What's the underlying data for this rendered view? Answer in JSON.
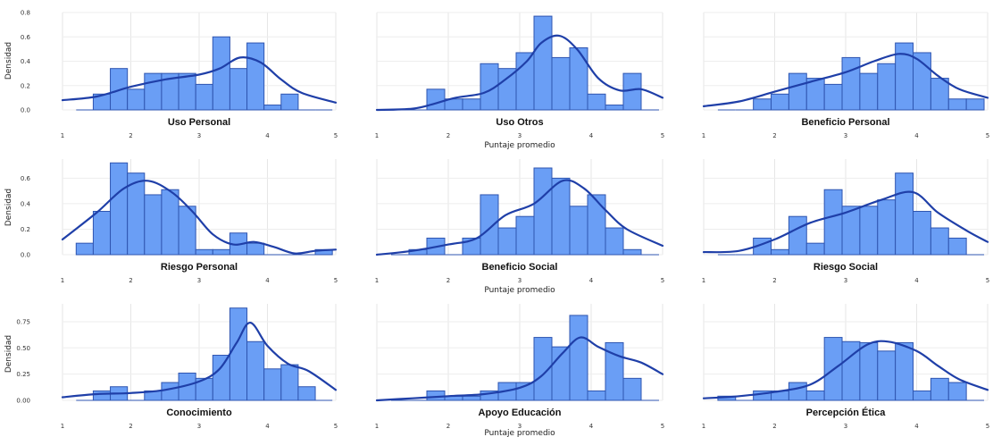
{
  "chart_data": {
    "type": "histogram",
    "xlabel": "Puntaje promedio",
    "ylabel": "Densidad",
    "bin_edges": [
      1.2,
      1.45,
      1.7,
      1.95,
      2.2,
      2.45,
      2.7,
      2.95,
      3.2,
      3.45,
      3.7,
      3.95,
      4.2,
      4.45,
      4.7,
      4.95
    ],
    "x_ticks": [
      "1",
      "2",
      "3",
      "4",
      "5"
    ],
    "x_range": [
      1,
      5
    ],
    "bar_color": "#6a9ef5",
    "bar_edge_color": "#2f55b0",
    "density_color": "#1f3fa8",
    "grid": true,
    "rows": [
      {
        "y_range": [
          0,
          0.8
        ],
        "y_ticks": [
          "0.0",
          "0.2",
          "0.4",
          "0.6",
          "0.8"
        ],
        "y_tick_values": [
          0,
          0.2,
          0.4,
          0.6,
          0.8
        ]
      },
      {
        "y_range": [
          0,
          0.75
        ],
        "y_ticks": [
          "0.0",
          "0.2",
          "0.4",
          "0.6"
        ],
        "y_tick_values": [
          0,
          0.2,
          0.4,
          0.6
        ]
      },
      {
        "y_range": [
          0,
          0.92
        ],
        "y_ticks": [
          "0.00",
          "0.25",
          "0.50",
          "0.75"
        ],
        "y_tick_values": [
          0,
          0.25,
          0.5,
          0.75
        ]
      }
    ],
    "panels": [
      {
        "title": "Uso Personal",
        "values": [
          0,
          0.13,
          0.34,
          0.17,
          0.3,
          0.3,
          0.3,
          0.21,
          0.6,
          0.34,
          0.55,
          0.04,
          0.13,
          0,
          0
        ],
        "density_x": [
          1.0,
          1.5,
          2.0,
          2.5,
          3.0,
          3.3,
          3.6,
          3.9,
          4.2,
          4.5,
          5.0
        ],
        "density_y": [
          0.08,
          0.11,
          0.19,
          0.25,
          0.29,
          0.34,
          0.43,
          0.39,
          0.25,
          0.14,
          0.06
        ]
      },
      {
        "title": "Uso Otros",
        "values": [
          0,
          0,
          0.17,
          0.09,
          0.09,
          0.38,
          0.34,
          0.47,
          0.77,
          0.43,
          0.51,
          0.13,
          0.04,
          0.3,
          0
        ],
        "density_x": [
          1.0,
          1.5,
          1.8,
          2.1,
          2.5,
          2.8,
          3.1,
          3.3,
          3.55,
          3.8,
          4.1,
          4.4,
          4.7,
          5.0
        ],
        "density_y": [
          0.0,
          0.01,
          0.05,
          0.1,
          0.14,
          0.25,
          0.4,
          0.55,
          0.61,
          0.5,
          0.26,
          0.16,
          0.17,
          0.1
        ]
      },
      {
        "title": "Beneficio Personal",
        "values": [
          0,
          0,
          0.09,
          0.13,
          0.3,
          0.26,
          0.21,
          0.43,
          0.3,
          0.38,
          0.55,
          0.47,
          0.26,
          0.09,
          0.09
        ],
        "density_x": [
          1.0,
          1.5,
          2.0,
          2.5,
          3.0,
          3.4,
          3.75,
          4.0,
          4.3,
          4.6,
          5.0
        ],
        "density_y": [
          0.03,
          0.07,
          0.15,
          0.23,
          0.31,
          0.4,
          0.46,
          0.42,
          0.28,
          0.17,
          0.1
        ]
      },
      {
        "title": "Riesgo Personal",
        "values": [
          0.09,
          0.34,
          0.72,
          0.64,
          0.47,
          0.51,
          0.38,
          0.04,
          0.04,
          0.17,
          0.09,
          0,
          0,
          0,
          0.04
        ],
        "density_x": [
          1.0,
          1.5,
          1.9,
          2.25,
          2.6,
          2.9,
          3.2,
          3.5,
          3.8,
          4.1,
          4.4,
          4.7,
          5.0
        ],
        "density_y": [
          0.12,
          0.33,
          0.52,
          0.58,
          0.49,
          0.34,
          0.16,
          0.08,
          0.1,
          0.06,
          0.01,
          0.03,
          0.04
        ]
      },
      {
        "title": "Beneficio Social",
        "values": [
          0,
          0.04,
          0.13,
          0,
          0.13,
          0.47,
          0.21,
          0.3,
          0.68,
          0.6,
          0.38,
          0.47,
          0.21,
          0.04,
          0
        ],
        "density_x": [
          1.0,
          1.5,
          2.0,
          2.4,
          2.8,
          3.2,
          3.6,
          3.9,
          4.2,
          4.5,
          5.0
        ],
        "density_y": [
          0.0,
          0.03,
          0.08,
          0.13,
          0.31,
          0.4,
          0.58,
          0.52,
          0.35,
          0.2,
          0.07
        ]
      },
      {
        "title": "Riesgo Social",
        "values": [
          0,
          0,
          0.13,
          0.04,
          0.3,
          0.09,
          0.51,
          0.38,
          0.38,
          0.43,
          0.64,
          0.34,
          0.21,
          0.13,
          0
        ],
        "density_x": [
          1.0,
          1.5,
          2.0,
          2.5,
          3.0,
          3.5,
          3.95,
          4.3,
          4.7,
          5.0
        ],
        "density_y": [
          0.02,
          0.03,
          0.12,
          0.25,
          0.33,
          0.43,
          0.49,
          0.33,
          0.19,
          0.1
        ]
      },
      {
        "title": "Conocimiento",
        "values": [
          0,
          0.09,
          0.13,
          0,
          0.09,
          0.17,
          0.26,
          0.21,
          0.43,
          0.88,
          0.56,
          0.3,
          0.34,
          0.13,
          0
        ],
        "density_x": [
          1.0,
          1.5,
          2.0,
          2.5,
          3.0,
          3.3,
          3.55,
          3.75,
          4.0,
          4.3,
          4.6,
          5.0
        ],
        "density_y": [
          0.03,
          0.06,
          0.07,
          0.1,
          0.18,
          0.3,
          0.55,
          0.74,
          0.52,
          0.35,
          0.28,
          0.1
        ]
      },
      {
        "title": "Apoyo Educación",
        "values": [
          0,
          0,
          0.09,
          0.04,
          0.04,
          0.09,
          0.17,
          0.17,
          0.6,
          0.51,
          0.81,
          0.09,
          0.55,
          0.21,
          0
        ],
        "density_x": [
          1.0,
          1.5,
          2.0,
          2.5,
          3.0,
          3.3,
          3.6,
          3.85,
          4.1,
          4.4,
          4.7,
          5.0
        ],
        "density_y": [
          0.0,
          0.02,
          0.04,
          0.06,
          0.12,
          0.23,
          0.45,
          0.6,
          0.51,
          0.42,
          0.36,
          0.25
        ]
      },
      {
        "title": "Percepción Ética",
        "values": [
          0.04,
          0,
          0.09,
          0.09,
          0.17,
          0.09,
          0.6,
          0.56,
          0.55,
          0.47,
          0.55,
          0.09,
          0.21,
          0.17,
          0
        ],
        "density_x": [
          1.0,
          1.5,
          2.0,
          2.5,
          2.9,
          3.3,
          3.6,
          4.0,
          4.3,
          4.6,
          5.0
        ],
        "density_y": [
          0.02,
          0.04,
          0.08,
          0.15,
          0.33,
          0.53,
          0.56,
          0.47,
          0.33,
          0.2,
          0.1
        ]
      }
    ]
  }
}
